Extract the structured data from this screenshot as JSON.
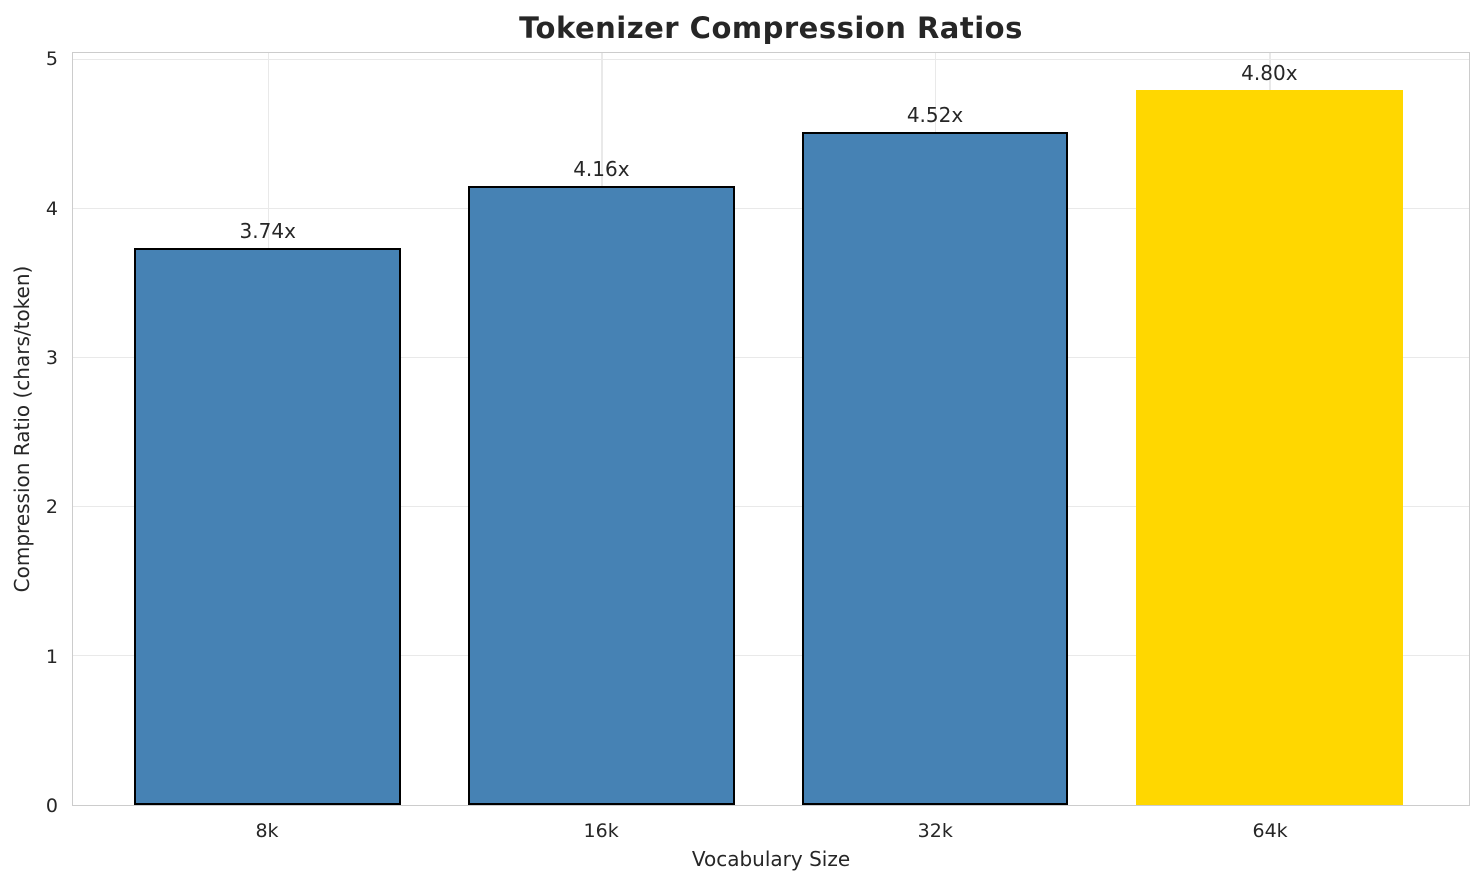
{
  "chart_data": {
    "type": "bar",
    "title": "Tokenizer Compression Ratios",
    "xlabel": "Vocabulary Size",
    "ylabel": "Compression Ratio (chars/token)",
    "categories": [
      "8k",
      "16k",
      "32k",
      "64k"
    ],
    "values": [
      3.74,
      4.16,
      4.52,
      4.8
    ],
    "bar_labels": [
      "3.74x",
      "4.16x",
      "4.52x",
      "4.80x"
    ],
    "yticks": [
      "0",
      "1",
      "2",
      "3",
      "4",
      "5"
    ],
    "ylim": [
      0,
      5
    ],
    "grid": "both",
    "legend": "none",
    "highlight_index": 3,
    "colors": {
      "bar_default": "#4682B4",
      "bar_highlight": "#FFD700",
      "bar_edge": "#000000",
      "grid": "#e9e9e9",
      "spine": "#cccccc",
      "text": "#262626"
    }
  }
}
